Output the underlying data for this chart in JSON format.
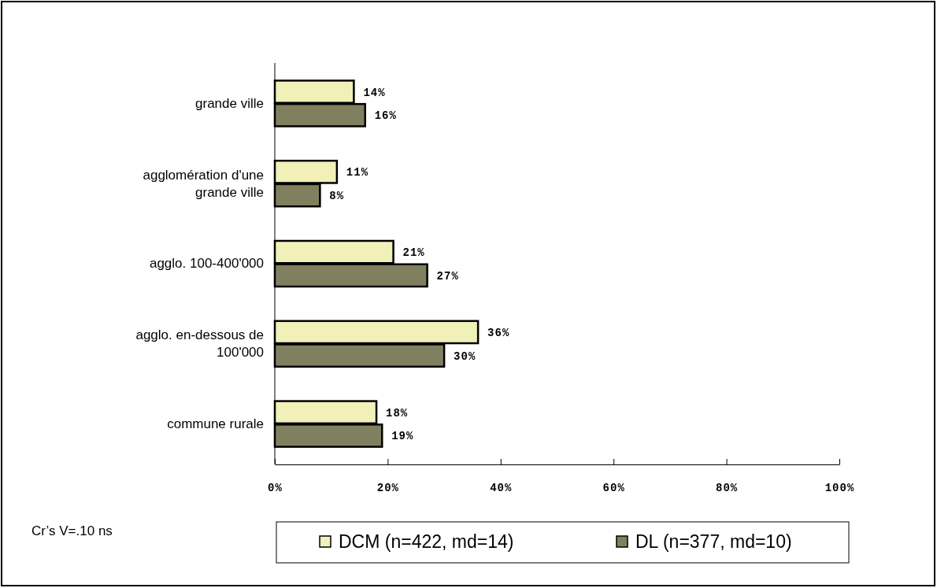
{
  "chart_data": {
    "type": "bar",
    "orientation": "horizontal",
    "categories": [
      "grande ville",
      "agglomération d'une grande ville",
      "agglo. 100-400'000",
      "agglo. en-dessous de 100'000",
      "commune rurale"
    ],
    "series": [
      {
        "name": "DCM (n=422, md=14)",
        "color": "#f0f0b8",
        "values": [
          14,
          11,
          21,
          36,
          18
        ],
        "value_labels": [
          "14%",
          "11%",
          "21%",
          "36%",
          "18%"
        ]
      },
      {
        "name": "DL (n=377, md=10)",
        "color": "#808060",
        "values": [
          16,
          8,
          27,
          30,
          19
        ],
        "value_labels": [
          "16%",
          "8%",
          "27%",
          "30%",
          "19%"
        ]
      }
    ],
    "xlim": [
      0,
      100
    ],
    "xticks": [
      {
        "value": 0,
        "label": "0%"
      },
      {
        "value": 20,
        "label": "20%"
      },
      {
        "value": 40,
        "label": "40%"
      },
      {
        "value": 60,
        "label": "60%"
      },
      {
        "value": 80,
        "label": "80%"
      },
      {
        "value": 100,
        "label": "100%"
      }
    ],
    "grid": false,
    "legend": "bottom",
    "annotations": [
      "Cr’s V=.10 ns"
    ]
  }
}
